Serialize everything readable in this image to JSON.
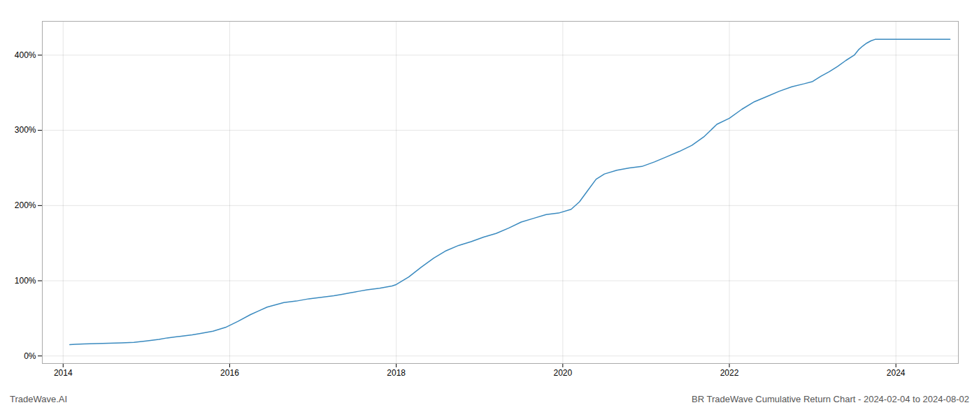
{
  "chart_data": {
    "type": "line",
    "annotations": [
      "TradeWave.AI",
      "BR TradeWave Cumulative Return Chart - 2024-02-04 to 2024-08-02"
    ],
    "color": "#3a8abf",
    "grid": true,
    "xlim": [
      2013.75,
      2024.75
    ],
    "ylim": [
      -10,
      445
    ],
    "xticks": [
      2014,
      2016,
      2018,
      2020,
      2022,
      2024
    ],
    "yticks": [
      {
        "value": 0,
        "label": "0%"
      },
      {
        "value": 100,
        "label": "100%"
      },
      {
        "value": 200,
        "label": "200%"
      },
      {
        "value": 300,
        "label": "300%"
      },
      {
        "value": 400,
        "label": "400%"
      }
    ],
    "x": [
      2014.08,
      2014.15,
      2014.25,
      2014.4,
      2014.55,
      2014.7,
      2014.85,
      2015.0,
      2015.15,
      2015.25,
      2015.4,
      2015.55,
      2015.65,
      2015.8,
      2015.95,
      2016.1,
      2016.25,
      2016.35,
      2016.45,
      2016.55,
      2016.65,
      2016.8,
      2016.95,
      2017.1,
      2017.25,
      2017.35,
      2017.45,
      2017.55,
      2017.65,
      2017.8,
      2017.95,
      2018.0,
      2018.15,
      2018.3,
      2018.45,
      2018.6,
      2018.75,
      2018.9,
      2019.05,
      2019.2,
      2019.35,
      2019.5,
      2019.65,
      2019.8,
      2019.95,
      2020.1,
      2020.2,
      2020.3,
      2020.4,
      2020.5,
      2020.65,
      2020.8,
      2020.95,
      2021.1,
      2021.25,
      2021.4,
      2021.55,
      2021.7,
      2021.85,
      2022.0,
      2022.15,
      2022.3,
      2022.45,
      2022.6,
      2022.75,
      2022.9,
      2023.0,
      2023.1,
      2023.2,
      2023.3,
      2023.4,
      2023.5,
      2023.55,
      2023.6,
      2023.65,
      2023.7,
      2023.75,
      2023.85,
      2023.95,
      2024.05,
      2024.15,
      2024.25,
      2024.35,
      2024.45,
      2024.55,
      2024.65
    ],
    "values": [
      15,
      15.5,
      16,
      16.5,
      17,
      17.5,
      18,
      20,
      22,
      24,
      26,
      28,
      30,
      33,
      38,
      46,
      55,
      60,
      65,
      68,
      71,
      73,
      76,
      78,
      80,
      82,
      84,
      86,
      88,
      90,
      93,
      95,
      105,
      118,
      130,
      140,
      147,
      152,
      158,
      163,
      170,
      178,
      183,
      188,
      190,
      195,
      205,
      220,
      235,
      242,
      247,
      250,
      252,
      258,
      265,
      272,
      280,
      292,
      308,
      316,
      328,
      338,
      345,
      352,
      358,
      362,
      365,
      372,
      378,
      385,
      393,
      400,
      407,
      412,
      416,
      419,
      421,
      421,
      421,
      421,
      421,
      421,
      421,
      421,
      421,
      421
    ]
  }
}
